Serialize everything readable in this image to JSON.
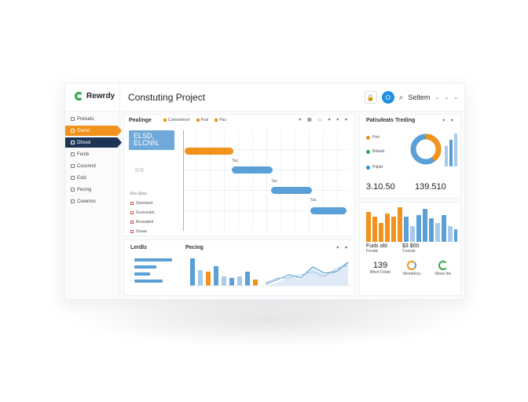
{
  "app": {
    "logo_text": "Rewrdy",
    "page_title": "Constuting Project"
  },
  "topbar": {
    "lock_icon": "lock-icon",
    "avatar_letter": "O",
    "search_label": "Seltem"
  },
  "sidebar": {
    "items": [
      {
        "label": "Preisets",
        "state": "normal"
      },
      {
        "label": "Glend",
        "state": "orange"
      },
      {
        "label": "Dbsed",
        "state": "navy"
      },
      {
        "label": "Fenlb",
        "state": "normal"
      },
      {
        "label": "Csosnnd",
        "state": "normal"
      },
      {
        "label": "Esld",
        "state": "normal"
      },
      {
        "label": "Pecing",
        "state": "normal"
      },
      {
        "label": "Cwwnios",
        "state": "normal"
      }
    ]
  },
  "gantt": {
    "title": "Pealinge",
    "legend": [
      "Comenbeort",
      "Pasl",
      "Pas"
    ],
    "label_line1": "ELSD,",
    "label_line2": "ELCNN,",
    "mini_text": "Ero Qoso",
    "list": [
      "Sinerbeet",
      "Sceonsdet",
      "Bsosadett",
      "Sosae"
    ],
    "bars": [
      {
        "label": "Tas",
        "color": "#f0921c"
      },
      {
        "label": "Tas",
        "color": "#5a9fd6"
      },
      {
        "label": "Tas",
        "color": "#5a9fd6"
      },
      {
        "label": "Tas",
        "color": "#5a9fd6"
      }
    ]
  },
  "bottom_left": {
    "title_left": "Lerdls",
    "title_mid": "Pecing"
  },
  "right_top": {
    "title": "Patisdeats Treding",
    "legend": [
      {
        "label": "Ped",
        "color": "#f0921c"
      },
      {
        "label": "Bdaale",
        "color": "#2ba84a"
      },
      {
        "label": "Pdptd",
        "color": "#1f8fe0"
      }
    ],
    "stat_left": "3.10.50",
    "stat_right": "139.510"
  },
  "right_bottom": {
    "stat_left_label": "Fuds obl",
    "stat_left_sub": "Fenale",
    "stat_right_label": "$3 $00",
    "stat_right_sub": "Cooiule",
    "kpis": [
      {
        "value": "139",
        "label": "Bfeot Dolatt"
      },
      {
        "value": "",
        "label": "Weedtlocy"
      },
      {
        "value": "",
        "label": "Morw hie"
      }
    ]
  },
  "colors": {
    "orange": "#f0921c",
    "navy": "#1c3557",
    "blue": "#5a9fd6",
    "green": "#2ba84a",
    "lightblue": "#a8c9ea"
  }
}
